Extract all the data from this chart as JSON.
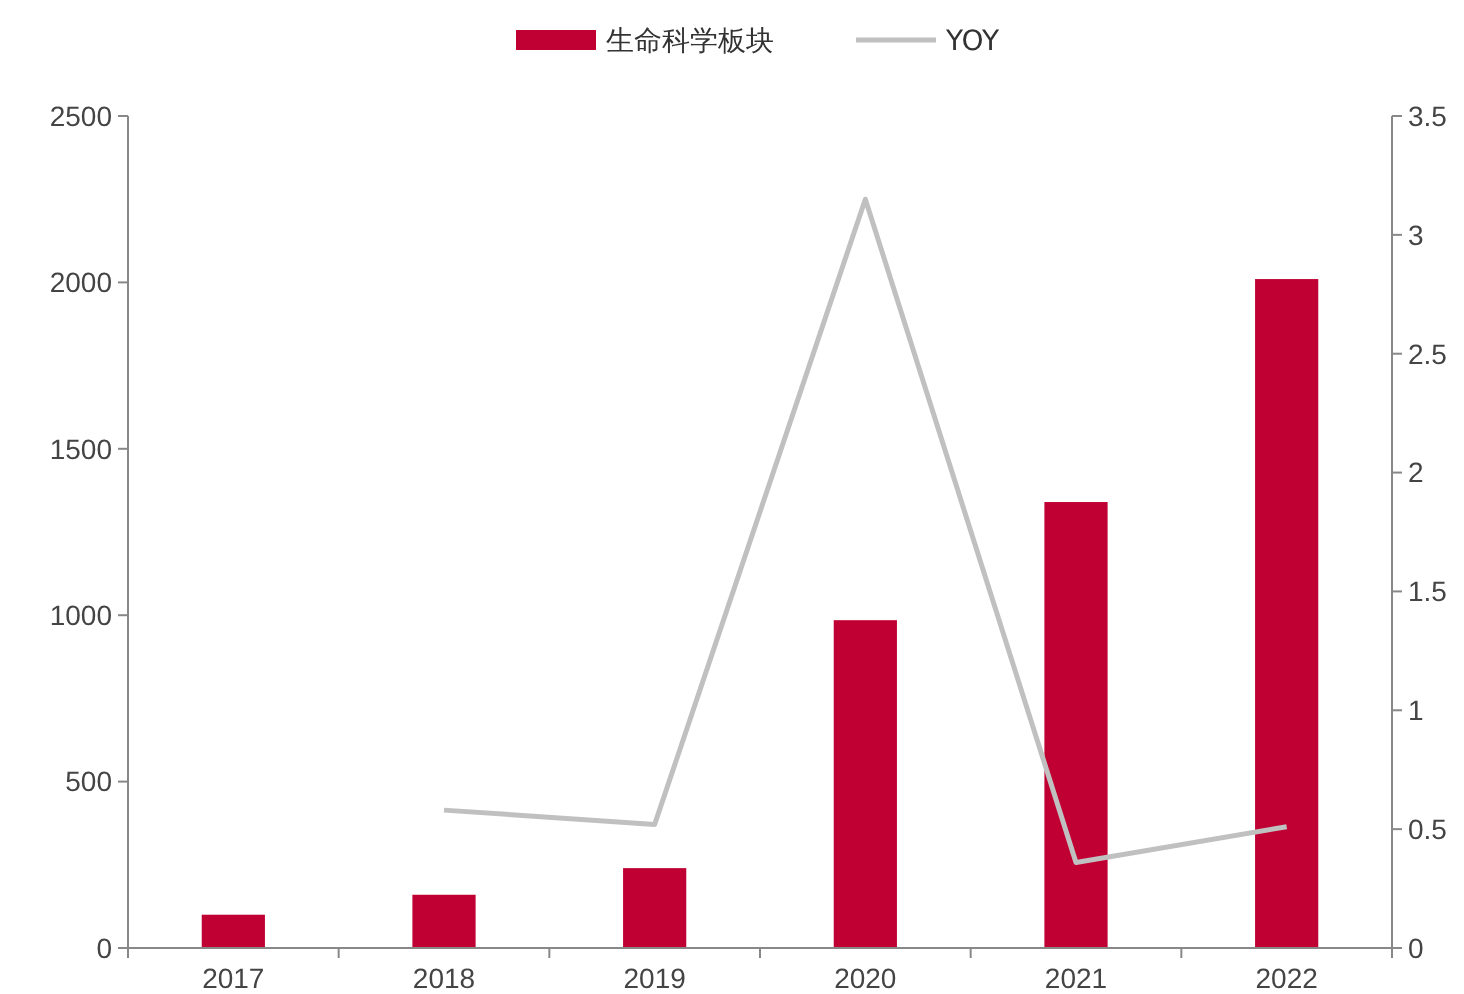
{
  "chart_data": {
    "type": "bar",
    "categories": [
      "2017",
      "2018",
      "2019",
      "2020",
      "2021",
      "2022"
    ],
    "series": [
      {
        "name": "生命科学板块",
        "type": "bar",
        "color": "#c00033",
        "values": [
          100,
          160,
          240,
          985,
          1340,
          2010
        ]
      },
      {
        "name": "YOY",
        "type": "line",
        "axis": "y2",
        "color": "#c0c0c0",
        "values": [
          null,
          0.58,
          0.52,
          3.15,
          0.36,
          0.51
        ]
      }
    ],
    "ylim": [
      0,
      2500
    ],
    "yticks": [
      0,
      500,
      1000,
      1500,
      2000,
      2500
    ],
    "y2lim": [
      0,
      3.5
    ],
    "y2ticks": [
      0,
      0.5,
      1,
      1.5,
      2,
      2.5,
      3,
      3.5
    ],
    "legend": "top",
    "grid": false,
    "marker": "none",
    "line_style": "solid"
  }
}
